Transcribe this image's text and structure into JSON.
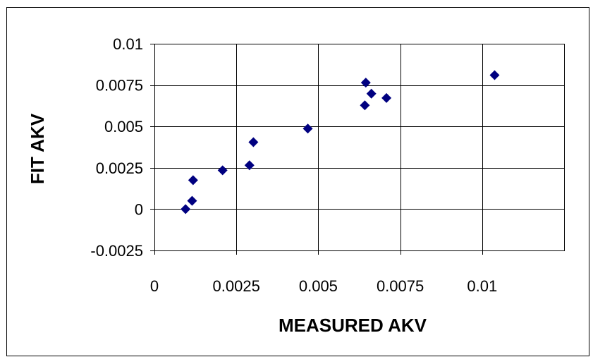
{
  "chart_data": {
    "type": "scatter",
    "xlabel": "MEASURED AKV",
    "ylabel": "FIT AKV",
    "xlim": [
      0,
      0.0125
    ],
    "ylim": [
      -0.0025,
      0.01
    ],
    "x_ticks": [
      0,
      0.0025,
      0.005,
      0.0075,
      0.01
    ],
    "x_tick_labels": [
      "0",
      "0.0025",
      "0.005",
      "0.0075",
      "0.01"
    ],
    "y_ticks": [
      -0.0025,
      0,
      0.0025,
      0.005,
      0.0075,
      0.01
    ],
    "y_tick_labels": [
      "-0.0025",
      "0",
      "0.0025",
      "0.005",
      "0.0075",
      "0.01"
    ],
    "grid": true,
    "legend": "none",
    "marker": "diamond",
    "marker_color": "#000080",
    "series": [
      {
        "points": [
          {
            "x": 0.00095,
            "y": 0.0
          },
          {
            "x": 0.00115,
            "y": 0.0005
          },
          {
            "x": 0.00118,
            "y": 0.00175
          },
          {
            "x": 0.00208,
            "y": 0.00235
          },
          {
            "x": 0.0029,
            "y": 0.00265
          },
          {
            "x": 0.00302,
            "y": 0.00405
          },
          {
            "x": 0.00468,
            "y": 0.00487
          },
          {
            "x": 0.00645,
            "y": 0.00765
          },
          {
            "x": 0.00662,
            "y": 0.00698
          },
          {
            "x": 0.00642,
            "y": 0.00628
          },
          {
            "x": 0.00708,
            "y": 0.00672
          },
          {
            "x": 0.01038,
            "y": 0.0081
          }
        ]
      }
    ]
  }
}
